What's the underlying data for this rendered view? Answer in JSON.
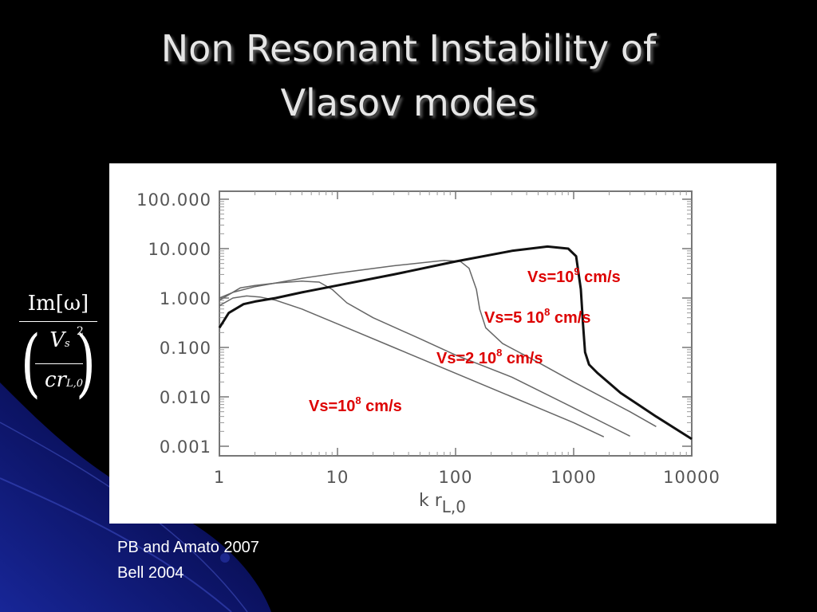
{
  "slide": {
    "title_line1": "Non Resonant Instability of",
    "title_line2": "Vlasov modes",
    "references": [
      "PB and Amato 2007",
      "Bell 2004"
    ],
    "accent_color": "#dd0000",
    "background_color": "#000000"
  },
  "ylabel": {
    "numerator": "Im[ω]",
    "vs": "V",
    "vs_sub": "s",
    "vs_sup": "2",
    "denominator": "cr",
    "denominator_sub": "L,0"
  },
  "chart_data": {
    "type": "line",
    "xscale": "log",
    "yscale": "log",
    "xlim": [
      1,
      10000
    ],
    "ylim": [
      0.001,
      100
    ],
    "xticks": [
      "1",
      "10",
      "100",
      "1000",
      "10000"
    ],
    "yticks": [
      "100.000",
      "10.000",
      "1.000",
      "0.100",
      "0.010",
      "0.001"
    ],
    "xlabel_main": "k  r",
    "xlabel_sub": "L,0",
    "series": [
      {
        "name": "Vs=10⁸ cm/s",
        "label_base": "Vs=10",
        "label_sup": "8",
        "label_unit": " cm/s",
        "color": "#666666",
        "x": [
          1,
          1.3,
          1.7,
          2.2,
          3,
          5,
          10,
          30,
          100,
          300,
          1000,
          1800
        ],
        "y": [
          0.7,
          1.0,
          1.1,
          1.05,
          0.9,
          0.6,
          0.3,
          0.1,
          0.03,
          0.01,
          0.003,
          0.00155
        ]
      },
      {
        "name": "Vs=2 10⁸ cm/s",
        "label_base": "Vs=2 10",
        "label_sup": "8",
        "label_unit": " cm/s",
        "color": "#666666",
        "x": [
          1,
          1.5,
          2,
          3,
          5,
          7,
          9,
          12,
          20,
          50,
          100,
          300,
          1000,
          3000
        ],
        "y": [
          0.9,
          1.6,
          1.8,
          2.0,
          2.2,
          2.1,
          1.5,
          0.8,
          0.4,
          0.15,
          0.07,
          0.025,
          0.006,
          0.0016
        ]
      },
      {
        "name": "Vs=5 10⁸ cm/s",
        "label_base": "Vs=5 10",
        "label_sup": "8",
        "label_unit": " cm/s",
        "color": "#666666",
        "x": [
          1,
          1.3,
          2,
          5,
          10,
          30,
          80,
          110,
          130,
          150,
          160,
          180,
          250,
          500,
          1000,
          3000,
          5000
        ],
        "y": [
          1.0,
          1.3,
          1.7,
          2.5,
          3.2,
          4.5,
          5.8,
          5.5,
          4.0,
          1.5,
          0.6,
          0.25,
          0.12,
          0.05,
          0.02,
          0.005,
          0.0025
        ]
      },
      {
        "name": "Vs=10⁹ cm/s",
        "label_base": "Vs=10",
        "label_sup": "9",
        "label_unit": " cm/s",
        "color": "#111111",
        "x": [
          1,
          1.2,
          1.6,
          2,
          3,
          5,
          10,
          30,
          100,
          300,
          600,
          900,
          1050,
          1150,
          1200,
          1250,
          1350,
          1600,
          2500,
          5000,
          10000
        ],
        "y": [
          0.25,
          0.5,
          0.75,
          0.85,
          1.0,
          1.3,
          1.8,
          3.0,
          5.5,
          9.0,
          11.0,
          10.0,
          7.0,
          1.5,
          0.3,
          0.08,
          0.045,
          0.03,
          0.012,
          0.004,
          0.0014
        ]
      }
    ]
  }
}
